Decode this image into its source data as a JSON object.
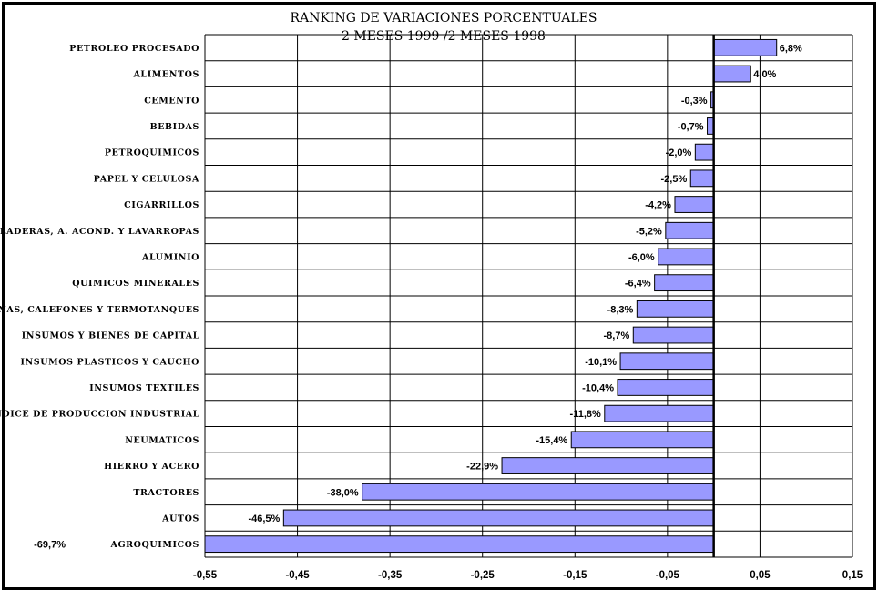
{
  "chart_data": {
    "type": "bar",
    "orientation": "horizontal",
    "title": "RANKING DE VARIACIONES PORCENTUALES",
    "subtitle": "2 MESES 1999 /2 MESES 1998",
    "categories": [
      "PETROLEO PROCESADO",
      "ALIMENTOS",
      "CEMENTO",
      "BEBIDAS",
      "PETROQUIMICOS",
      "PAPEL Y CELULOSA",
      "CIGARRILLOS",
      "HELADERAS, A. ACOND. Y LAVARROPAS",
      "ALUMINIO",
      "QUIMICOS MINERALES",
      "COCINAS, CALEFONES Y TERMOTANQUES",
      "INSUMOS Y BIENES DE CAPITAL",
      "INSUMOS PLASTICOS Y CAUCHO",
      "INSUMOS TEXTILES",
      "INDICE DE PRODUCCION INDUSTRIAL",
      "NEUMATICOS",
      "HIERRO Y ACERO",
      "TRACTORES",
      "AUTOS",
      "AGROQUIMICOS"
    ],
    "values": [
      0.068,
      0.04,
      -0.003,
      -0.007,
      -0.02,
      -0.025,
      -0.042,
      -0.052,
      -0.06,
      -0.064,
      -0.083,
      -0.087,
      -0.101,
      -0.104,
      -0.118,
      -0.154,
      -0.229,
      -0.38,
      -0.465,
      -0.697
    ],
    "data_labels": [
      "6,8%",
      "4,0%",
      "-0,3%",
      "-0,7%",
      "-2,0%",
      "-2,5%",
      "-4,2%",
      "-5,2%",
      "-6,0%",
      "-6,4%",
      "-8,3%",
      "-8,7%",
      "-10,1%",
      "-10,4%",
      "-11,8%",
      "-15,4%",
      "-22,9%",
      "-38,0%",
      "-46,5%",
      "-69,7%"
    ],
    "xlim": [
      -0.55,
      0.15
    ],
    "xticks": [
      "-0,55",
      "-0,45",
      "-0,35",
      "-0,25",
      "-0,15",
      "-0,05",
      "0,05",
      "0,15"
    ],
    "xtick_values": [
      -0.55,
      -0.45,
      -0.35,
      -0.25,
      -0.15,
      -0.05,
      0.05,
      0.15
    ],
    "grid": true,
    "bar_color": "#9999ff"
  }
}
